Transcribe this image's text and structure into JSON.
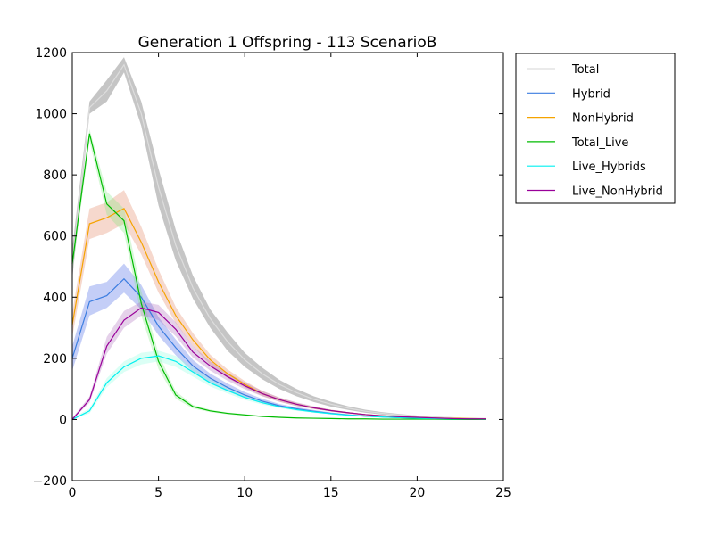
{
  "chart_data": {
    "type": "line",
    "title": "Generation 1 Offspring - 113 ScenarioB",
    "xlabel": "",
    "ylabel": "",
    "xlim": [
      0,
      25
    ],
    "ylim": [
      -200,
      1200
    ],
    "x_ticks": [
      0,
      5,
      10,
      15,
      20,
      25
    ],
    "y_ticks": [
      -200,
      0,
      200,
      400,
      600,
      800,
      1000,
      1200
    ],
    "grid": false,
    "legend_position": "outside-top-right",
    "x": [
      0,
      1,
      2,
      3,
      4,
      5,
      6,
      7,
      8,
      9,
      10,
      11,
      12,
      13,
      14,
      15,
      16,
      17,
      18,
      19,
      20,
      21,
      22,
      23,
      24
    ],
    "series": [
      {
        "name": "Total",
        "color": "#dddddd",
        "band_color": "#bbbbbb",
        "values": [
          510,
          1020,
          1075,
          1160,
          1000,
          760,
          570,
          430,
          330,
          255,
          195,
          150,
          115,
          88,
          66,
          50,
          37,
          27,
          20,
          15,
          11,
          8,
          6,
          4,
          3
        ],
        "band_lower": [
          460,
          1000,
          1040,
          1135,
          960,
          700,
          520,
          395,
          300,
          225,
          172,
          132,
          100,
          76,
          57,
          42,
          31,
          22,
          16,
          11,
          8,
          6,
          4,
          3,
          2
        ],
        "band_upper": [
          560,
          1040,
          1110,
          1185,
          1040,
          820,
          620,
          470,
          360,
          285,
          218,
          170,
          130,
          100,
          76,
          58,
          43,
          32,
          24,
          18,
          13,
          10,
          7,
          5,
          4
        ]
      },
      {
        "name": "Hybrid",
        "color": "#3b7de0",
        "band_color": "#3d5ce6",
        "values": [
          200,
          385,
          405,
          460,
          400,
          305,
          235,
          175,
          135,
          105,
          80,
          60,
          45,
          35,
          27,
          20,
          15,
          11,
          8,
          6,
          5,
          3,
          2,
          2,
          1
        ],
        "band_lower": [
          160,
          340,
          365,
          415,
          360,
          275,
          210,
          155,
          118,
          92,
          70,
          53,
          40,
          30,
          23,
          17,
          13,
          9,
          7,
          5,
          4,
          3,
          2,
          1,
          1
        ],
        "band_upper": [
          240,
          435,
          450,
          510,
          440,
          335,
          262,
          195,
          150,
          118,
          90,
          68,
          51,
          40,
          31,
          23,
          17,
          13,
          10,
          7,
          5,
          4,
          3,
          2,
          2
        ]
      },
      {
        "name": "NonHybrid",
        "color": "#f5a300",
        "band_color": "#e07d5a",
        "values": [
          310,
          640,
          660,
          690,
          580,
          450,
          340,
          260,
          195,
          150,
          115,
          85,
          65,
          50,
          38,
          29,
          22,
          16,
          12,
          9,
          7,
          5,
          4,
          3,
          2
        ],
        "band_lower": [
          270,
          590,
          610,
          640,
          540,
          415,
          315,
          240,
          178,
          136,
          104,
          77,
          58,
          44,
          34,
          26,
          19,
          14,
          10,
          8,
          6,
          4,
          3,
          2,
          2
        ],
        "band_upper": [
          350,
          690,
          710,
          750,
          630,
          490,
          368,
          282,
          212,
          164,
          126,
          94,
          72,
          55,
          42,
          32,
          24,
          18,
          14,
          10,
          8,
          6,
          4,
          3,
          2
        ]
      },
      {
        "name": "Total_Live",
        "color": "#00bb00",
        "band_color": "#7fe87f",
        "values": [
          510,
          935,
          705,
          650,
          380,
          190,
          80,
          42,
          28,
          20,
          15,
          10,
          7,
          5,
          4,
          3,
          2,
          2,
          1,
          1,
          1,
          1,
          0,
          0,
          0
        ],
        "band_lower": [
          480,
          910,
          670,
          610,
          340,
          165,
          68,
          36,
          24,
          17,
          12,
          8,
          6,
          4,
          3,
          2,
          2,
          1,
          1,
          1,
          0,
          0,
          0,
          0,
          0
        ],
        "band_upper": [
          540,
          950,
          745,
          690,
          420,
          215,
          92,
          48,
          32,
          23,
          18,
          12,
          8,
          6,
          5,
          4,
          3,
          2,
          2,
          1,
          1,
          1,
          1,
          0,
          0
        ]
      },
      {
        "name": "Live_Hybrids",
        "color": "#00f0f0",
        "band_color": "#88ffdd",
        "values": [
          0,
          28,
          120,
          172,
          200,
          208,
          190,
          155,
          120,
          95,
          72,
          55,
          42,
          32,
          25,
          19,
          14,
          11,
          8,
          6,
          4,
          3,
          2,
          2,
          1
        ],
        "band_lower": [
          0,
          20,
          105,
          155,
          180,
          190,
          172,
          140,
          108,
          85,
          64,
          49,
          37,
          28,
          22,
          17,
          13,
          9,
          7,
          5,
          4,
          3,
          2,
          1,
          1
        ],
        "band_upper": [
          5,
          36,
          135,
          190,
          218,
          225,
          208,
          170,
          132,
          105,
          80,
          61,
          47,
          36,
          28,
          21,
          16,
          12,
          9,
          7,
          5,
          4,
          3,
          2,
          2
        ]
      },
      {
        "name": "Live_NonHybrid",
        "color": "#990099",
        "band_color": "#aa66bb",
        "values": [
          0,
          65,
          240,
          325,
          365,
          350,
          295,
          220,
          175,
          140,
          110,
          85,
          65,
          50,
          38,
          29,
          22,
          16,
          12,
          9,
          7,
          5,
          3,
          2,
          2
        ],
        "band_lower": [
          0,
          55,
          215,
          300,
          340,
          325,
          272,
          202,
          160,
          127,
          99,
          76,
          58,
          44,
          34,
          26,
          19,
          14,
          10,
          8,
          6,
          4,
          3,
          2,
          1
        ],
        "band_upper": [
          5,
          75,
          270,
          355,
          385,
          375,
          318,
          240,
          190,
          153,
          121,
          94,
          72,
          56,
          43,
          32,
          24,
          18,
          14,
          10,
          8,
          6,
          4,
          3,
          2
        ]
      }
    ]
  }
}
